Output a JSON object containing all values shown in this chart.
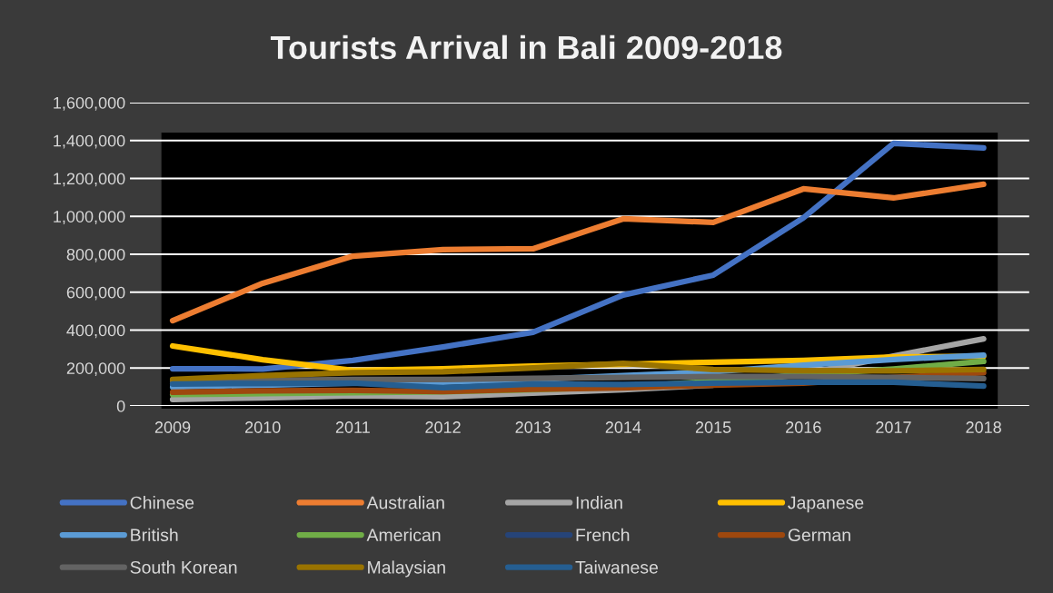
{
  "chart_data": {
    "type": "line",
    "title": "Tourists Arrival in Bali 2009-2018",
    "categories": [
      "2009",
      "2010",
      "2011",
      "2012",
      "2013",
      "2014",
      "2015",
      "2016",
      "2017",
      "2018"
    ],
    "series": [
      {
        "name": "Chinese",
        "color": "#4472c4",
        "values": [
          196000,
          195000,
          240000,
          311000,
          388000,
          585000,
          690000,
          992000,
          1385000,
          1361000
        ]
      },
      {
        "name": "Australian",
        "color": "#ed7d31",
        "values": [
          450000,
          647000,
          790000,
          824000,
          829000,
          987000,
          968000,
          1145000,
          1097000,
          1169000
        ]
      },
      {
        "name": "Indian",
        "color": "#a5a5a5",
        "values": [
          34000,
          43000,
          53000,
          48000,
          67000,
          86000,
          110000,
          168000,
          263000,
          354000
        ]
      },
      {
        "name": "Japanese",
        "color": "#ffc000",
        "values": [
          316000,
          244000,
          187000,
          196000,
          210000,
          220000,
          230000,
          240000,
          258000,
          262000
        ]
      },
      {
        "name": "British",
        "color": "#5b9bd5",
        "values": [
          100000,
          110000,
          120000,
          125000,
          140000,
          160000,
          180000,
          215000,
          245000,
          268000
        ]
      },
      {
        "name": "American",
        "color": "#70ad47",
        "values": [
          60000,
          65000,
          70000,
          75000,
          85000,
          100000,
          130000,
          165000,
          195000,
          235000
        ]
      },
      {
        "name": "French",
        "color": "#264478",
        "values": [
          null,
          null,
          null,
          null,
          null,
          null,
          null,
          null,
          null,
          null
        ]
      },
      {
        "name": "German",
        "color": "#9e480e",
        "values": [
          72000,
          80000,
          82000,
          76000,
          88000,
          95000,
          110000,
          120000,
          150000,
          175000
        ]
      },
      {
        "name": "South Korean",
        "color": "#636363",
        "values": [
          130000,
          135000,
          140000,
          140000,
          145000,
          150000,
          155000,
          155000,
          150000,
          144000
        ]
      },
      {
        "name": "Malaysian",
        "color": "#997300",
        "values": [
          140000,
          160000,
          175000,
          180000,
          200000,
          225000,
          192000,
          186000,
          185000,
          192000
        ]
      },
      {
        "name": "Taiwanese",
        "color": "#255e91",
        "values": [
          116000,
          118000,
          120000,
          96000,
          115000,
          113000,
          120000,
          125000,
          125000,
          105000
        ]
      }
    ],
    "ylim": [
      0,
      1600000
    ],
    "yticks": [
      {
        "value": 0,
        "label": "0"
      },
      {
        "value": 200000,
        "label": "200,000"
      },
      {
        "value": 400000,
        "label": "400,000"
      },
      {
        "value": 600000,
        "label": "600,000"
      },
      {
        "value": 800000,
        "label": "800,000"
      },
      {
        "value": 1000000,
        "label": "1,000,000"
      },
      {
        "value": 1200000,
        "label": "1,200,000"
      },
      {
        "value": 1400000,
        "label": "1,400,000"
      },
      {
        "value": 1600000,
        "label": "1,600,000"
      }
    ],
    "grid": "y",
    "legend": "bottom",
    "marker": "none",
    "line_style": "solid"
  }
}
